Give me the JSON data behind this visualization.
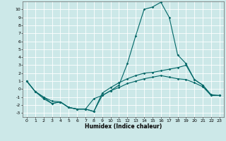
{
  "title": "",
  "xlabel": "Humidex (Indice chaleur)",
  "background_color": "#cce8e8",
  "grid_color": "#ffffff",
  "line_color": "#006666",
  "xlim": [
    -0.5,
    23.5
  ],
  "ylim": [
    -3.5,
    11.0
  ],
  "xticks": [
    0,
    1,
    2,
    3,
    4,
    5,
    6,
    7,
    8,
    9,
    10,
    11,
    12,
    13,
    14,
    15,
    16,
    17,
    18,
    19,
    20,
    21,
    22,
    23
  ],
  "yticks": [
    -3,
    -2,
    -1,
    0,
    1,
    2,
    3,
    4,
    5,
    6,
    7,
    8,
    9,
    10
  ],
  "line1_y": [
    1.0,
    -0.3,
    -1.2,
    -1.8,
    -1.6,
    -2.3,
    -2.5,
    -2.5,
    -2.8,
    -0.8,
    -0.2,
    0.5,
    3.2,
    6.7,
    10.0,
    10.3,
    10.9,
    9.0,
    4.3,
    3.2,
    1.2,
    0.5,
    -0.7,
    -0.8
  ],
  "line2_y": [
    1.0,
    -0.3,
    -1.0,
    -1.8,
    -1.6,
    -2.3,
    -2.5,
    -2.5,
    -2.8,
    -0.5,
    0.2,
    0.8,
    1.3,
    1.7,
    2.0,
    2.1,
    2.3,
    2.5,
    2.7,
    3.0,
    1.2,
    0.5,
    -0.8,
    -0.8
  ],
  "line3_y": [
    1.0,
    -0.3,
    -1.0,
    -1.5,
    -1.6,
    -2.3,
    -2.5,
    -2.5,
    -1.2,
    -0.8,
    -0.2,
    0.2,
    0.7,
    1.0,
    1.3,
    1.5,
    1.7,
    1.5,
    1.3,
    1.2,
    0.8,
    0.3,
    -0.8,
    -0.8
  ],
  "marker_size": 1.8,
  "line_width": 0.8,
  "tick_fontsize": 4.5,
  "xlabel_fontsize": 5.5
}
